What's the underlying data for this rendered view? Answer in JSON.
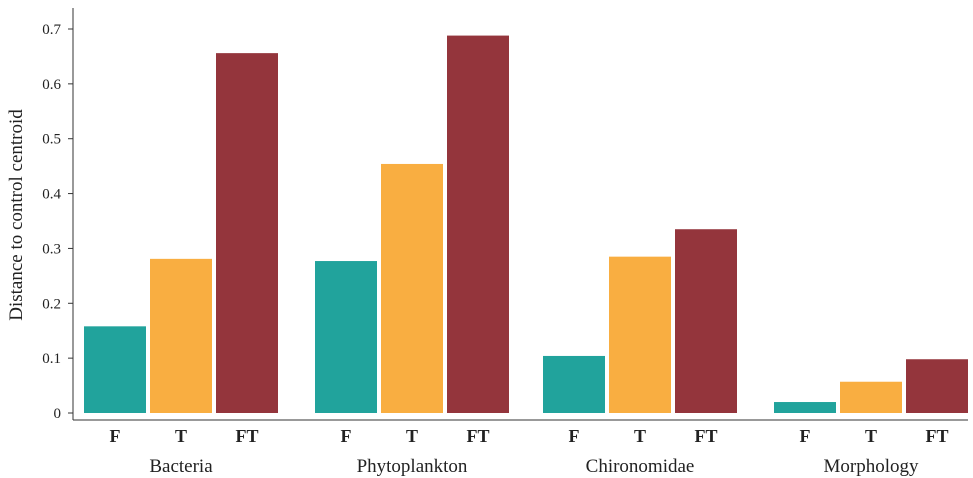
{
  "chart_data": {
    "type": "bar",
    "ylabel": "Distance to control centroid",
    "xlabel": "",
    "ylim": [
      0,
      0.74
    ],
    "yticks": [
      0,
      0.1,
      0.2,
      0.3,
      0.4,
      0.5,
      0.6,
      0.7
    ],
    "ytick_labels": [
      "0",
      "0.1",
      "0.2",
      "0.3",
      "0.4",
      "0.5",
      "0.6",
      "0.7"
    ],
    "grid": false,
    "groups": [
      {
        "name": "Bacteria",
        "bars": [
          {
            "label": "F",
            "value": 0.158
          },
          {
            "label": "T",
            "value": 0.281
          },
          {
            "label": "FT",
            "value": 0.656
          }
        ]
      },
      {
        "name": "Phytoplankton",
        "bars": [
          {
            "label": "F",
            "value": 0.277
          },
          {
            "label": "T",
            "value": 0.454
          },
          {
            "label": "FT",
            "value": 0.688
          }
        ]
      },
      {
        "name": "Chironomidae",
        "bars": [
          {
            "label": "F",
            "value": 0.104
          },
          {
            "label": "T",
            "value": 0.285
          },
          {
            "label": "FT",
            "value": 0.335
          }
        ]
      },
      {
        "name": "Morphology",
        "bars": [
          {
            "label": "F",
            "value": 0.02
          },
          {
            "label": "T",
            "value": 0.057
          },
          {
            "label": "FT",
            "value": 0.098
          }
        ]
      }
    ],
    "colors": {
      "F": "#21a39c",
      "T": "#f9ae41",
      "FT": "#94353c"
    }
  }
}
